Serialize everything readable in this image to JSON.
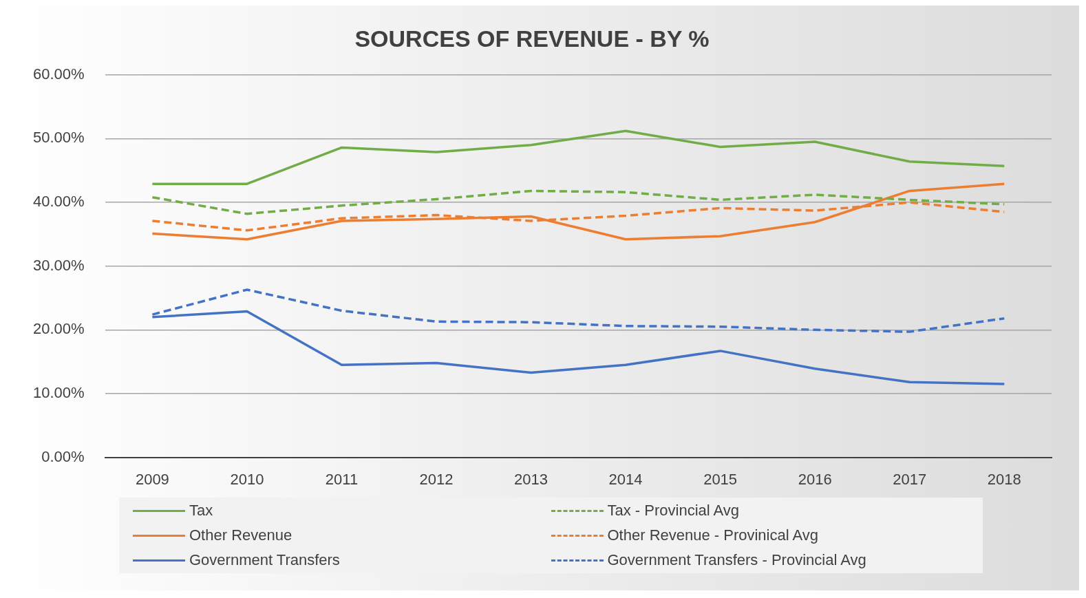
{
  "chart_data": {
    "type": "line",
    "title": "SOURCES OF REVENUE - BY %",
    "categories": [
      "2009",
      "2010",
      "2011",
      "2012",
      "2013",
      "2014",
      "2015",
      "2016",
      "2017",
      "2018"
    ],
    "series": [
      {
        "name": "Tax",
        "color": "#70ad47",
        "line_style": "solid",
        "values": [
          42.9,
          42.9,
          48.6,
          47.9,
          49.0,
          51.2,
          48.7,
          49.5,
          46.4,
          45.7
        ]
      },
      {
        "name": "Tax - Provincial Avg",
        "color": "#70ad47",
        "line_style": "dashed",
        "values": [
          40.8,
          38.2,
          39.5,
          40.5,
          41.8,
          41.6,
          40.4,
          41.2,
          40.4,
          39.7
        ]
      },
      {
        "name": "Other Revenue",
        "color": "#ed7d31",
        "line_style": "solid",
        "values": [
          35.1,
          34.2,
          37.1,
          37.4,
          37.8,
          34.2,
          34.7,
          36.9,
          41.8,
          42.9
        ]
      },
      {
        "name": "Other Revenue - Provinical Avg",
        "color": "#ed7d31",
        "line_style": "dashed",
        "values": [
          37.1,
          35.6,
          37.5,
          38.0,
          37.1,
          37.9,
          39.1,
          38.7,
          40.0,
          38.5
        ]
      },
      {
        "name": "Government Transfers",
        "color": "#4472c4",
        "line_style": "solid",
        "values": [
          22.0,
          22.9,
          14.5,
          14.8,
          13.3,
          14.5,
          16.7,
          13.9,
          11.8,
          11.5
        ]
      },
      {
        "name": "Government Transfers - Provincial Avg",
        "color": "#4472c4",
        "line_style": "dashed",
        "values": [
          22.4,
          26.3,
          23.0,
          21.3,
          21.2,
          20.6,
          20.5,
          20.0,
          19.7,
          21.8
        ]
      }
    ],
    "ylim": [
      0,
      60
    ],
    "yticks": [
      {
        "value": 0,
        "label": "0.00%"
      },
      {
        "value": 10,
        "label": "10.00%"
      },
      {
        "value": 20,
        "label": "20.00%"
      },
      {
        "value": 30,
        "label": "30.00%"
      },
      {
        "value": 40,
        "label": "40.00%"
      },
      {
        "value": 50,
        "label": "50.00%"
      },
      {
        "value": 60,
        "label": "60.00%"
      }
    ],
    "grid": "y",
    "legend": "bottom",
    "marker": "none"
  }
}
